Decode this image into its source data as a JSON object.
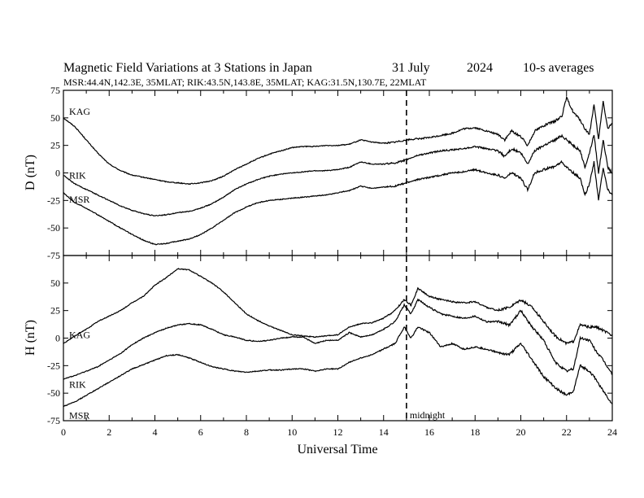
{
  "header": {
    "title": "Magnetic Field Variations at 3 Stations in Japan",
    "date": "31 July",
    "year": "2024",
    "averaging": "10-s averages",
    "stations_line": "MSR:44.4N,142.3E, 35MLAT;  RIK:43.5N,143.8E, 35MLAT;  KAG:31.5N,130.7E, 22MLAT"
  },
  "chart_data": [
    {
      "id": "D",
      "type": "line",
      "ylabel": "D (nT)",
      "ylim": [
        -75,
        75
      ],
      "yticks": [
        75,
        50,
        25,
        0,
        -25,
        -50,
        -75
      ],
      "xlim": [
        0,
        24
      ],
      "series": [
        {
          "name": "KAG",
          "x": [
            0,
            0.5,
            1,
            1.5,
            2,
            2.5,
            3,
            3.5,
            4,
            4.5,
            5,
            5.5,
            6,
            6.5,
            7,
            7.5,
            8,
            8.5,
            9,
            9.5,
            10,
            10.5,
            11,
            11.5,
            12,
            12.5,
            13,
            13.5,
            14,
            14.5,
            15,
            15.5,
            16,
            16.5,
            17,
            17.5,
            18,
            18.5,
            19,
            19.3,
            19.6,
            20,
            20.3,
            20.6,
            21,
            21.5,
            21.8,
            22,
            22.3,
            22.6,
            22.8,
            23,
            23.2,
            23.4,
            23.6,
            23.8,
            24
          ],
          "y": [
            50,
            42,
            30,
            18,
            8,
            2,
            -2,
            -4,
            -6,
            -8,
            -9,
            -10,
            -9,
            -7,
            -3,
            3,
            8,
            13,
            17,
            20,
            23,
            24,
            24,
            25,
            25,
            26,
            30,
            28,
            27,
            28,
            30,
            31,
            32,
            34,
            36,
            40,
            41,
            38,
            35,
            30,
            38,
            33,
            25,
            38,
            43,
            47,
            52,
            68,
            55,
            48,
            40,
            35,
            62,
            30,
            65,
            40,
            45
          ]
        },
        {
          "name": "RIK",
          "x": [
            0,
            0.5,
            1,
            1.5,
            2,
            2.5,
            3,
            3.5,
            4,
            4.5,
            5,
            5.5,
            6,
            6.5,
            7,
            7.5,
            8,
            8.5,
            9,
            9.5,
            10,
            10.5,
            11,
            11.5,
            12,
            12.5,
            13,
            13.5,
            14,
            14.5,
            15,
            15.5,
            16,
            16.5,
            17,
            17.5,
            18,
            18.5,
            19,
            19.3,
            19.6,
            20,
            20.3,
            20.6,
            21,
            21.5,
            21.8,
            22,
            22.3,
            22.6,
            22.8,
            23,
            23.2,
            23.4,
            23.6,
            23.8,
            24
          ],
          "y": [
            -2,
            -10,
            -15,
            -20,
            -25,
            -30,
            -34,
            -37,
            -39,
            -38,
            -36,
            -35,
            -32,
            -28,
            -22,
            -15,
            -10,
            -6,
            -3,
            -1,
            0,
            1,
            2,
            2,
            3,
            5,
            10,
            8,
            8,
            9,
            12,
            16,
            18,
            20,
            21,
            22,
            24,
            22,
            20,
            15,
            22,
            18,
            8,
            20,
            25,
            30,
            34,
            30,
            25,
            20,
            5,
            18,
            35,
            0,
            30,
            5,
            0
          ]
        },
        {
          "name": "MSR",
          "x": [
            0,
            0.5,
            1,
            1.5,
            2,
            2.5,
            3,
            3.5,
            4,
            4.5,
            5,
            5.5,
            6,
            6.5,
            7,
            7.5,
            8,
            8.5,
            9,
            9.5,
            10,
            10.5,
            11,
            11.5,
            12,
            12.5,
            13,
            13.5,
            14,
            14.5,
            15,
            15.5,
            16,
            16.5,
            17,
            17.5,
            18,
            18.5,
            19,
            19.3,
            19.6,
            20,
            20.3,
            20.6,
            21,
            21.5,
            21.8,
            22,
            22.3,
            22.6,
            22.8,
            23,
            23.2,
            23.4,
            23.6,
            23.8,
            24
          ],
          "y": [
            -18,
            -27,
            -32,
            -38,
            -44,
            -50,
            -56,
            -61,
            -65,
            -64,
            -62,
            -60,
            -56,
            -50,
            -43,
            -36,
            -31,
            -27,
            -25,
            -24,
            -23,
            -22,
            -21,
            -20,
            -18,
            -16,
            -12,
            -14,
            -13,
            -12,
            -9,
            -6,
            -4,
            -2,
            0,
            1,
            3,
            0,
            -2,
            -5,
            0,
            -5,
            -15,
            0,
            3,
            6,
            10,
            5,
            0,
            -5,
            -20,
            -10,
            10,
            -25,
            5,
            -15,
            -20
          ]
        }
      ],
      "station_labels": [
        {
          "text": "KAG",
          "x": 0.25,
          "y": 53
        },
        {
          "text": "RIK",
          "x": 0.25,
          "y": -5
        },
        {
          "text": "MSR",
          "x": 0.25,
          "y": -27
        }
      ]
    },
    {
      "id": "H",
      "type": "line",
      "ylabel": "H (nT)",
      "ylim": [
        -75,
        75
      ],
      "yticks": [
        50,
        25,
        0,
        -25,
        -50,
        -75
      ],
      "xlim": [
        0,
        24
      ],
      "xticks": [
        0,
        2,
        4,
        6,
        8,
        10,
        12,
        14,
        16,
        18,
        20,
        22,
        24
      ],
      "xlabel": "Universal Time",
      "series": [
        {
          "name": "KAG",
          "x": [
            0,
            0.5,
            1,
            1.5,
            2,
            2.5,
            3,
            3.5,
            4,
            4.5,
            5,
            5.5,
            6,
            6.5,
            7,
            7.5,
            8,
            8.5,
            9,
            9.5,
            10,
            10.5,
            11,
            11.5,
            12,
            12.5,
            13,
            13.5,
            14,
            14.5,
            14.9,
            15.2,
            15.5,
            16,
            16.5,
            17,
            17.5,
            18,
            18.5,
            19,
            19.5,
            20,
            20.5,
            21,
            21.5,
            22,
            22.3,
            22.6,
            23,
            23.3,
            23.6,
            24
          ],
          "y": [
            -5,
            2,
            8,
            15,
            20,
            25,
            32,
            38,
            48,
            55,
            63,
            62,
            56,
            50,
            42,
            32,
            22,
            16,
            11,
            7,
            3,
            2,
            1,
            2,
            3,
            10,
            13,
            14,
            18,
            25,
            35,
            30,
            45,
            38,
            35,
            33,
            32,
            33,
            28,
            25,
            28,
            35,
            28,
            15,
            2,
            -5,
            -3,
            12,
            10,
            10,
            7,
            2
          ]
        },
        {
          "name": "RIK",
          "x": [
            0,
            0.5,
            1,
            1.5,
            2,
            2.5,
            3,
            3.5,
            4,
            4.5,
            5,
            5.5,
            6,
            6.5,
            7,
            7.5,
            8,
            8.5,
            9,
            9.5,
            10,
            10.5,
            11,
            11.5,
            12,
            12.5,
            13,
            13.5,
            14,
            14.5,
            14.9,
            15.2,
            15.5,
            16,
            16.5,
            17,
            17.5,
            18,
            18.5,
            19,
            19.5,
            20,
            20.5,
            21,
            21.5,
            22,
            22.3,
            22.6,
            23,
            23.3,
            23.6,
            24
          ],
          "y": [
            -37,
            -34,
            -30,
            -26,
            -20,
            -14,
            -6,
            0,
            5,
            9,
            12,
            13,
            12,
            8,
            3,
            1,
            -2,
            -3,
            -2,
            0,
            1,
            1,
            -5,
            -2,
            -2,
            5,
            1,
            3,
            8,
            15,
            30,
            22,
            35,
            28,
            22,
            20,
            18,
            20,
            15,
            15,
            12,
            25,
            10,
            -2,
            -22,
            -30,
            -28,
            0,
            -2,
            -12,
            -20,
            -33
          ]
        },
        {
          "name": "MSR",
          "x": [
            0,
            0.5,
            1,
            1.5,
            2,
            2.5,
            3,
            3.5,
            4,
            4.5,
            5,
            5.5,
            6,
            6.5,
            7,
            7.5,
            8,
            8.5,
            9,
            9.5,
            10,
            10.5,
            11,
            11.5,
            12,
            12.5,
            13,
            13.5,
            14,
            14.5,
            14.9,
            15.2,
            15.5,
            16,
            16.5,
            17,
            17.5,
            18,
            18.5,
            19,
            19.5,
            20,
            20.5,
            21,
            21.5,
            22,
            22.3,
            22.6,
            23,
            23.3,
            23.6,
            24
          ],
          "y": [
            -62,
            -58,
            -52,
            -46,
            -40,
            -34,
            -28,
            -24,
            -20,
            -16,
            -15,
            -18,
            -22,
            -26,
            -28,
            -30,
            -31,
            -30,
            -29,
            -29,
            -28,
            -28,
            -30,
            -28,
            -28,
            -22,
            -18,
            -15,
            -10,
            -5,
            10,
            0,
            10,
            5,
            -8,
            -5,
            -10,
            -8,
            -10,
            -13,
            -15,
            -5,
            -20,
            -35,
            -45,
            -52,
            -48,
            -25,
            -30,
            -38,
            -48,
            -60
          ]
        }
      ],
      "station_labels": [
        {
          "text": "KAG",
          "x": 0.25,
          "y": 0
        },
        {
          "text": "RIK",
          "x": 0.25,
          "y": -45
        },
        {
          "text": "MSR",
          "x": 0.25,
          "y": -73
        }
      ]
    }
  ],
  "annotations": {
    "midnight_label": "midnight",
    "midnight_ut": 15
  }
}
